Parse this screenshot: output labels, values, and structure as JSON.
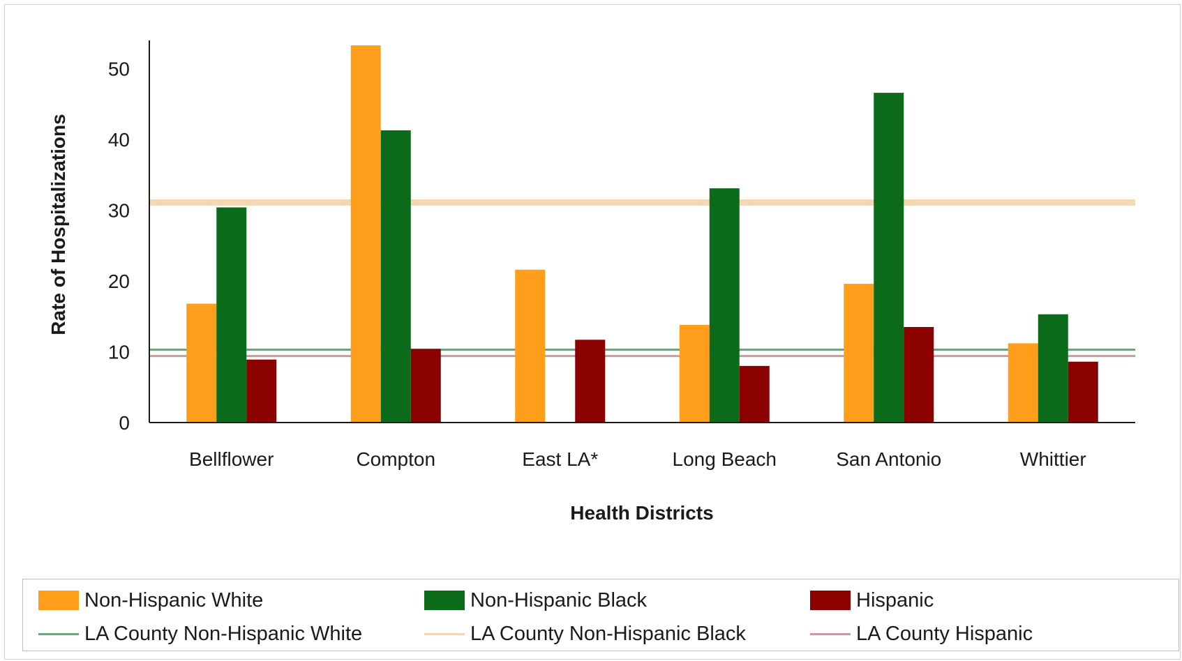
{
  "colors": {
    "nh_white": "#FF9E1B",
    "nh_black": "#0B6B1A",
    "hispanic": "#8B0000",
    "la_nh_white": "#6FA37A",
    "la_nh_black": "#F4D7B3",
    "la_hispanic": "#C99A9E"
  },
  "legend": {
    "items": [
      {
        "label": "Non-Hispanic White",
        "kind": "bar",
        "color": "#FF9E1B"
      },
      {
        "label": "Non-Hispanic Black",
        "kind": "bar",
        "color": "#0B6B1A"
      },
      {
        "label": "Hispanic",
        "kind": "bar",
        "color": "#8B0000"
      },
      {
        "label": "LA County Non-Hispanic White",
        "kind": "line",
        "color": "#6FA37A"
      },
      {
        "label": "LA County Non-Hispanic Black",
        "kind": "line",
        "color": "#F4D7B3"
      },
      {
        "label": "LA County Hispanic",
        "kind": "line",
        "color": "#C99A9E"
      }
    ]
  },
  "chart_data": {
    "type": "bar",
    "title": "",
    "xlabel": "Health Districts",
    "ylabel": "Rate of Hospitalizations",
    "ylim": [
      0,
      54
    ],
    "yticks": [
      0,
      10,
      20,
      30,
      40,
      50
    ],
    "categories": [
      "Bellflower",
      "Compton",
      "East LA*",
      "Long Beach",
      "San Antonio",
      "Whittier"
    ],
    "series": [
      {
        "name": "Non-Hispanic White",
        "color": "#FF9E1B",
        "values": [
          16.8,
          53.3,
          21.6,
          13.8,
          19.6,
          11.2
        ]
      },
      {
        "name": "Non-Hispanic Black",
        "color": "#0B6B1A",
        "values": [
          30.4,
          41.3,
          null,
          33.1,
          46.6,
          15.3
        ]
      },
      {
        "name": "Hispanic",
        "color": "#8B0000",
        "values": [
          8.9,
          10.4,
          11.7,
          8.0,
          13.5,
          8.6
        ]
      }
    ],
    "reference_lines": [
      {
        "name": "LA County Non-Hispanic White",
        "value": 10.3,
        "color": "#6FA37A"
      },
      {
        "name": "LA County Non-Hispanic Black",
        "value": 31.1,
        "color": "#F4D7B3"
      },
      {
        "name": "LA County Hispanic",
        "value": 9.4,
        "color": "#C99A9E"
      }
    ],
    "grid": false,
    "legend_position": "bottom"
  }
}
